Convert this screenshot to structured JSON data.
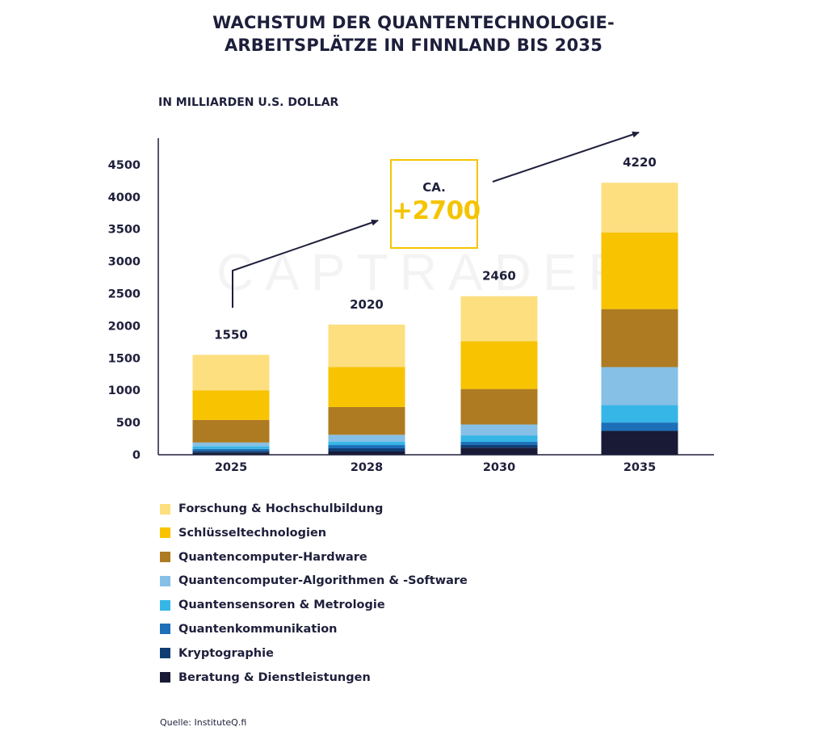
{
  "header": {
    "title_line1": "WACHSTUM DER QUANTENTECHNOLOGIE-",
    "title_line2": "ARBEITSPLÄTZE IN FINNLAND BIS 2035",
    "unit_label": "IN MILLIARDEN U.S. DOLLAR"
  },
  "callout": {
    "prefix": "CA.",
    "value": "+2700"
  },
  "watermark": "CAPTRADER",
  "source": "Quelle: InstituteQ.fi",
  "colors": {
    "axis": "#1e1f3b",
    "text": "#1e1f3b",
    "accent": "#f5c400"
  },
  "chart_data": {
    "type": "bar",
    "stacked": true,
    "categories": [
      "2025",
      "2028",
      "2030",
      "2035"
    ],
    "totals": [
      1550,
      2020,
      2460,
      4220
    ],
    "ylim": [
      0,
      4500
    ],
    "yticks": [
      0,
      500,
      1000,
      1500,
      2000,
      2500,
      3000,
      3500,
      4000,
      4500
    ],
    "grid": false,
    "legend_position": "bottom",
    "series": [
      {
        "name": "Beratung & Dienstleistungen",
        "color": "#191a36",
        "values": [
          30,
          50,
          110,
          370
        ]
      },
      {
        "name": "Kryptographie",
        "color": "#0f3d72",
        "values": [
          30,
          50,
          40,
          0
        ]
      },
      {
        "name": "Quantenkommunikation",
        "color": "#1d6fb8",
        "values": [
          30,
          50,
          50,
          130
        ]
      },
      {
        "name": "Quantensensoren & Metrologie",
        "color": "#35b6e6",
        "values": [
          40,
          50,
          100,
          270
        ]
      },
      {
        "name": "Quantencomputer-Algorithmen & -Software",
        "color": "#86c0e6",
        "values": [
          60,
          110,
          170,
          590
        ]
      },
      {
        "name": "Quantencomputer-Hardware",
        "color": "#ae7b22",
        "values": [
          350,
          430,
          550,
          900
        ]
      },
      {
        "name": "Schlüsseltechnologien",
        "color": "#f8c300",
        "values": [
          460,
          620,
          740,
          1190
        ]
      },
      {
        "name": "Forschung & Hochschulbildung",
        "color": "#fddf7f",
        "values": [
          550,
          660,
          700,
          770
        ]
      }
    ]
  },
  "legend": {
    "items": [
      {
        "label": "Forschung & Hochschulbildung",
        "color": "#fddf7f"
      },
      {
        "label": "Schlüsseltechnologien",
        "color": "#f8c300"
      },
      {
        "label": "Quantencomputer-Hardware",
        "color": "#ae7b22"
      },
      {
        "label": "Quantencomputer-Algorithmen & -Software",
        "color": "#86c0e6"
      },
      {
        "label": "Quantensensoren & Metrologie",
        "color": "#35b6e6"
      },
      {
        "label": "Quantenkommunikation",
        "color": "#1d6fb8"
      },
      {
        "label": "Kryptographie",
        "color": "#0f3d72"
      },
      {
        "label": "Beratung & Dienstleistungen",
        "color": "#191a36"
      }
    ]
  }
}
